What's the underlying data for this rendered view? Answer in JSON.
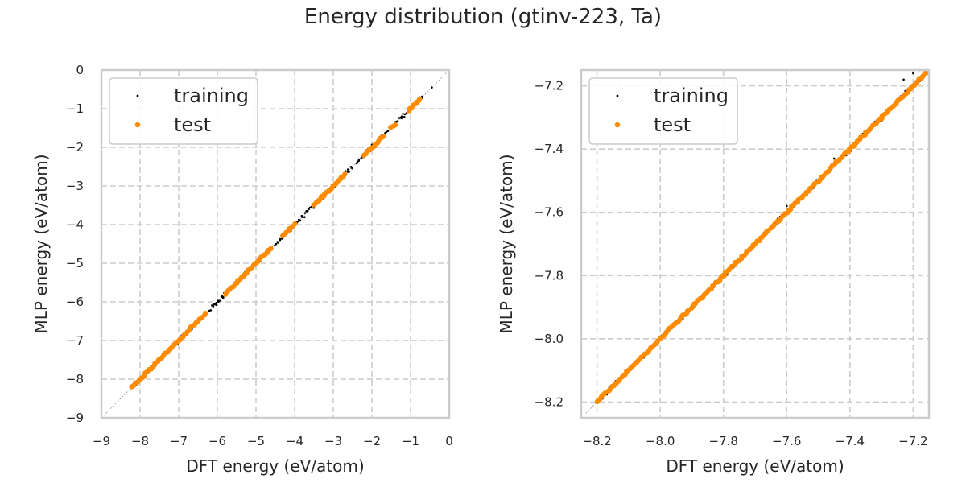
{
  "title": "Energy distribution (gtinv-223, Ta)",
  "colors": {
    "training": "#000000",
    "test": "#ff8c00",
    "grid": "#cccccc",
    "spine": "#cccccc",
    "diagonal": "#999999"
  },
  "chart_data": [
    {
      "type": "scatter",
      "xlabel": "DFT energy (eV/atom)",
      "ylabel": "MLP energy (eV/atom)",
      "xlim": [
        -9,
        0
      ],
      "ylim": [
        -9,
        0
      ],
      "xticks": [
        -9,
        -8,
        -7,
        -6,
        -5,
        -4,
        -3,
        -2,
        -1,
        0
      ],
      "yticks": [
        -9,
        -8,
        -7,
        -6,
        -5,
        -4,
        -3,
        -2,
        -1,
        0
      ],
      "xtick_labels": [
        "−9",
        "−8",
        "−7",
        "−6",
        "−5",
        "−4",
        "−3",
        "−2",
        "−1",
        "0"
      ],
      "ytick_labels": [
        "−9",
        "−8",
        "−7",
        "−6",
        "−5",
        "−4",
        "−3",
        "−2",
        "−1",
        "0"
      ],
      "grid": true,
      "legend": "upper-left",
      "diagonal": true,
      "series": [
        {
          "name": "training",
          "marker": "small-dot",
          "segments": [
            [
              -8.2,
              -6.3
            ],
            [
              -6.2,
              -4.6
            ],
            [
              -4.5,
              -2.5
            ],
            [
              -2.4,
              -1.6
            ],
            [
              -1.4,
              -0.7
            ]
          ],
          "points": [
            [
              -0.45,
              -0.45
            ],
            [
              -6.1,
              -6.05
            ],
            [
              -5.85,
              -5.9
            ],
            [
              -4.3,
              -4.25
            ],
            [
              -2.9,
              -2.85
            ],
            [
              -0.7,
              -0.72
            ]
          ]
        },
        {
          "name": "test",
          "marker": "dot",
          "segments": [
            [
              -8.2,
              -6.3
            ],
            [
              -5.8,
              -4.6
            ],
            [
              -4.3,
              -4.0
            ],
            [
              -3.5,
              -2.7
            ],
            [
              -2.2,
              -1.7
            ],
            [
              -1.5,
              -1.4
            ],
            [
              -1.05,
              -0.75
            ]
          ],
          "points": [
            [
              -3.25,
              -3.25
            ],
            [
              -3.1,
              -3.1
            ]
          ]
        }
      ]
    },
    {
      "type": "scatter",
      "xlabel": "DFT energy (eV/atom)",
      "ylabel": "MLP energy (eV/atom)",
      "xlim": [
        -8.25,
        -7.15
      ],
      "ylim": [
        -8.25,
        -7.15
      ],
      "xticks": [
        -8.2,
        -8.0,
        -7.8,
        -7.6,
        -7.4,
        -7.2
      ],
      "yticks": [
        -8.2,
        -8.0,
        -7.8,
        -7.6,
        -7.4,
        -7.2
      ],
      "xtick_labels": [
        "−8.2",
        "−8.0",
        "−7.8",
        "−7.6",
        "−7.4",
        "−7.2"
      ],
      "ytick_labels": [
        "−8.2",
        "−8.0",
        "−7.8",
        "−7.6",
        "−7.4",
        "−7.2"
      ],
      "grid": true,
      "legend": "upper-left",
      "diagonal": true,
      "series": [
        {
          "name": "training",
          "marker": "small-dot",
          "segments": [
            [
              -8.2,
              -7.16
            ]
          ],
          "points": [
            [
              -7.18,
              -7.15
            ],
            [
              -7.2,
              -7.16
            ],
            [
              -7.23,
              -7.18
            ],
            [
              -7.3,
              -7.31
            ],
            [
              -7.45,
              -7.43
            ],
            [
              -7.6,
              -7.58
            ],
            [
              -7.17,
              -7.17
            ]
          ]
        },
        {
          "name": "test",
          "marker": "dot",
          "segments": [
            [
              -8.2,
              -7.16
            ]
          ],
          "points": [
            [
              -7.16,
              -7.16
            ],
            [
              -7.2,
              -7.2
            ]
          ]
        }
      ]
    }
  ]
}
